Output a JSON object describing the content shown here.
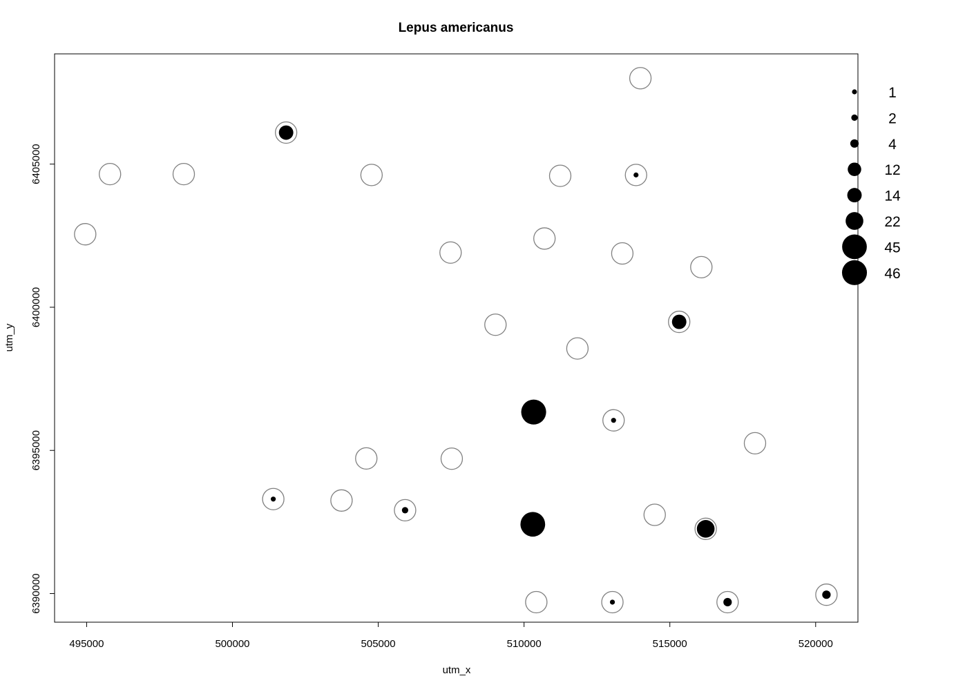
{
  "chart_data": {
    "type": "scatter",
    "title": "Lepus americanus",
    "xlabel": "utm_x",
    "ylabel": "utm_y",
    "xlim": [
      493900,
      521450
    ],
    "ylim": [
      6389000,
      6408850
    ],
    "x_ticks": [
      495000,
      500000,
      505000,
      510000,
      515000,
      520000
    ],
    "x_tick_labels": [
      "495000",
      "500000",
      "505000",
      "510000",
      "515000",
      "520000"
    ],
    "y_ticks": [
      6390000,
      6395000,
      6400000,
      6405000
    ],
    "y_tick_labels": [
      "6390000",
      "6395000",
      "6400000",
      "6405000"
    ],
    "grid": false,
    "legend_position": "right",
    "legend": [
      {
        "label": "1",
        "value": 1
      },
      {
        "label": "2",
        "value": 2
      },
      {
        "label": "4",
        "value": 4
      },
      {
        "label": "12",
        "value": 12
      },
      {
        "label": "14",
        "value": 14
      },
      {
        "label": "22",
        "value": 22
      },
      {
        "label": "45",
        "value": 45
      },
      {
        "label": "46",
        "value": 46
      }
    ],
    "colors": {
      "site_outline": "#808080",
      "abundance_fill": "#000000",
      "frame": "#000000"
    },
    "sites": [
      {
        "x": 513990,
        "y": 6408000,
        "count": 0
      },
      {
        "x": 501840,
        "y": 6406100,
        "count": 14
      },
      {
        "x": 495800,
        "y": 6404650,
        "count": 0
      },
      {
        "x": 498330,
        "y": 6404650,
        "count": 0
      },
      {
        "x": 504770,
        "y": 6404620,
        "count": 0
      },
      {
        "x": 511240,
        "y": 6404590,
        "count": 0
      },
      {
        "x": 513840,
        "y": 6404620,
        "count": 1
      },
      {
        "x": 494950,
        "y": 6402550,
        "count": 0
      },
      {
        "x": 510700,
        "y": 6402400,
        "count": 0
      },
      {
        "x": 507480,
        "y": 6401910,
        "count": 0
      },
      {
        "x": 513370,
        "y": 6401880,
        "count": 0
      },
      {
        "x": 516080,
        "y": 6401400,
        "count": 0
      },
      {
        "x": 515320,
        "y": 6399490,
        "count": 14
      },
      {
        "x": 509020,
        "y": 6399390,
        "count": 0
      },
      {
        "x": 511830,
        "y": 6398560,
        "count": 0
      },
      {
        "x": 510330,
        "y": 6396340,
        "count": 46
      },
      {
        "x": 513070,
        "y": 6396050,
        "count": 1
      },
      {
        "x": 517920,
        "y": 6395250,
        "count": 0
      },
      {
        "x": 504590,
        "y": 6394720,
        "count": 0
      },
      {
        "x": 507520,
        "y": 6394710,
        "count": 0
      },
      {
        "x": 501400,
        "y": 6393300,
        "count": 1
      },
      {
        "x": 503740,
        "y": 6393250,
        "count": 0
      },
      {
        "x": 505920,
        "y": 6392910,
        "count": 2
      },
      {
        "x": 514480,
        "y": 6392750,
        "count": 0
      },
      {
        "x": 510300,
        "y": 6392420,
        "count": 45
      },
      {
        "x": 516230,
        "y": 6392260,
        "count": 22
      },
      {
        "x": 520370,
        "y": 6389960,
        "count": 4
      },
      {
        "x": 510420,
        "y": 6389700,
        "count": 0
      },
      {
        "x": 513030,
        "y": 6389700,
        "count": 1
      },
      {
        "x": 516980,
        "y": 6389700,
        "count": 4
      }
    ]
  }
}
